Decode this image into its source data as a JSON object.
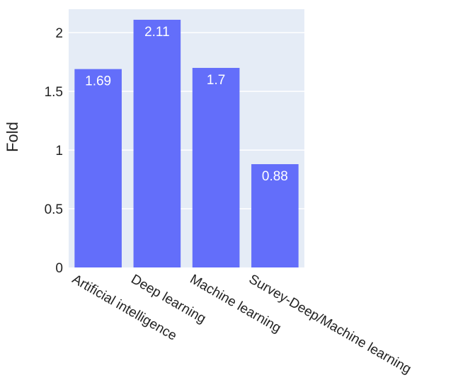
{
  "chart_data": {
    "type": "bar",
    "categories": [
      "Artificial intelligence",
      "Deep learning",
      "Machine learning",
      "Survey-Deep/Machine learning"
    ],
    "values": [
      1.69,
      2.11,
      1.7,
      0.88
    ],
    "value_labels": [
      "1.69",
      "2.11",
      "1.7",
      "0.88"
    ],
    "ylabel": "Fold",
    "xlabel": "",
    "ylim": [
      0,
      2.2
    ],
    "yticks": [
      0,
      0.5,
      1,
      1.5,
      2
    ],
    "ytick_labels": [
      "0",
      "0.5",
      "1",
      "1.5",
      "2"
    ],
    "grid": true,
    "bar_color": "#636efa",
    "plot_background": "#e5ecf6",
    "grid_color": "#ffffff"
  }
}
